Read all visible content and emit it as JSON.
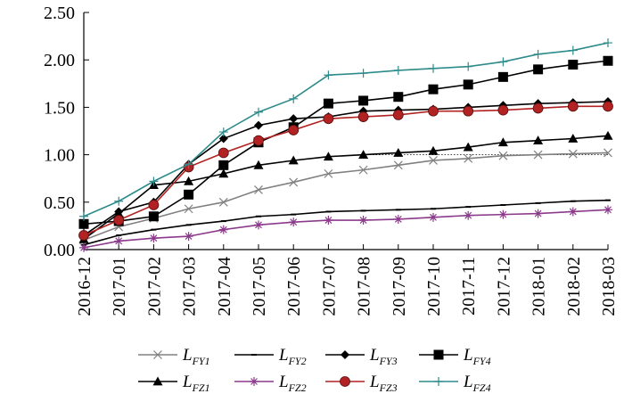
{
  "chart_data": {
    "type": "line",
    "title": "",
    "xlabel": "",
    "ylabel": "",
    "categories": [
      "2016-12",
      "2017-01",
      "2017-02",
      "2017-03",
      "2017-04",
      "2017-05",
      "2017-06",
      "2017-07",
      "2017-08",
      "2017-09",
      "2017-10",
      "2017-11",
      "2017-12",
      "2018-01",
      "2018-02",
      "2018-03"
    ],
    "ylim": [
      0,
      2.5
    ],
    "yticks": [
      "0.00",
      "0.50",
      "1.00",
      "1.50",
      "2.00",
      "2.50"
    ],
    "grid": false,
    "legend_position": "bottom",
    "series": [
      {
        "id": "FY1",
        "name_main": "L",
        "name_sub": "FY1",
        "marker": "x",
        "color": "#808080",
        "values": [
          0.1,
          0.24,
          0.33,
          0.43,
          0.5,
          0.63,
          0.71,
          0.8,
          0.84,
          0.89,
          0.94,
          0.96,
          0.99,
          1.0,
          1.01,
          1.02
        ]
      },
      {
        "id": "FY2",
        "name_main": "L",
        "name_sub": "FY2",
        "marker": "dash",
        "color": "#000000",
        "values": [
          0.05,
          0.15,
          0.21,
          0.26,
          0.3,
          0.35,
          0.37,
          0.4,
          0.41,
          0.42,
          0.43,
          0.45,
          0.47,
          0.49,
          0.51,
          0.52
        ]
      },
      {
        "id": "FY3",
        "name_main": "L",
        "name_sub": "FY3",
        "marker": "diamond",
        "color": "#000000",
        "values": [
          0.15,
          0.4,
          0.5,
          0.9,
          1.17,
          1.31,
          1.38,
          1.4,
          1.46,
          1.47,
          1.48,
          1.5,
          1.52,
          1.54,
          1.55,
          1.56
        ]
      },
      {
        "id": "FY4",
        "name_main": "L",
        "name_sub": "FY4",
        "marker": "square",
        "color": "#000000",
        "values": [
          0.27,
          0.3,
          0.35,
          0.58,
          0.89,
          1.13,
          1.29,
          1.54,
          1.57,
          1.61,
          1.69,
          1.74,
          1.82,
          1.9,
          1.95,
          1.99
        ]
      },
      {
        "id": "FZ1",
        "name_main": "L",
        "name_sub": "FZ1",
        "marker": "triangle",
        "color": "#000000",
        "values": [
          0.11,
          0.38,
          0.68,
          0.72,
          0.8,
          0.89,
          0.94,
          0.98,
          1.0,
          1.02,
          1.04,
          1.08,
          1.13,
          1.15,
          1.17,
          1.2
        ]
      },
      {
        "id": "FZ2",
        "name_main": "L",
        "name_sub": "FZ2",
        "marker": "star",
        "color": "#8B3A8B",
        "values": [
          0.02,
          0.09,
          0.12,
          0.14,
          0.21,
          0.26,
          0.29,
          0.31,
          0.31,
          0.32,
          0.34,
          0.36,
          0.37,
          0.38,
          0.4,
          0.42
        ]
      },
      {
        "id": "FZ3",
        "name_main": "L",
        "name_sub": "FZ3",
        "marker": "circle",
        "color": "#B22222",
        "values": [
          0.15,
          0.31,
          0.47,
          0.87,
          1.02,
          1.15,
          1.26,
          1.38,
          1.4,
          1.42,
          1.46,
          1.46,
          1.47,
          1.49,
          1.51,
          1.51
        ]
      },
      {
        "id": "FZ4",
        "name_main": "L",
        "name_sub": "FZ4",
        "marker": "plus",
        "color": "#2E8B8B",
        "values": [
          0.35,
          0.51,
          0.72,
          0.9,
          1.24,
          1.45,
          1.59,
          1.84,
          1.86,
          1.89,
          1.91,
          1.93,
          1.98,
          2.06,
          2.1,
          2.18
        ]
      }
    ],
    "reference_line": {
      "value": 1.0,
      "from_index": 8,
      "to_index": 15,
      "style": "dotted"
    }
  }
}
